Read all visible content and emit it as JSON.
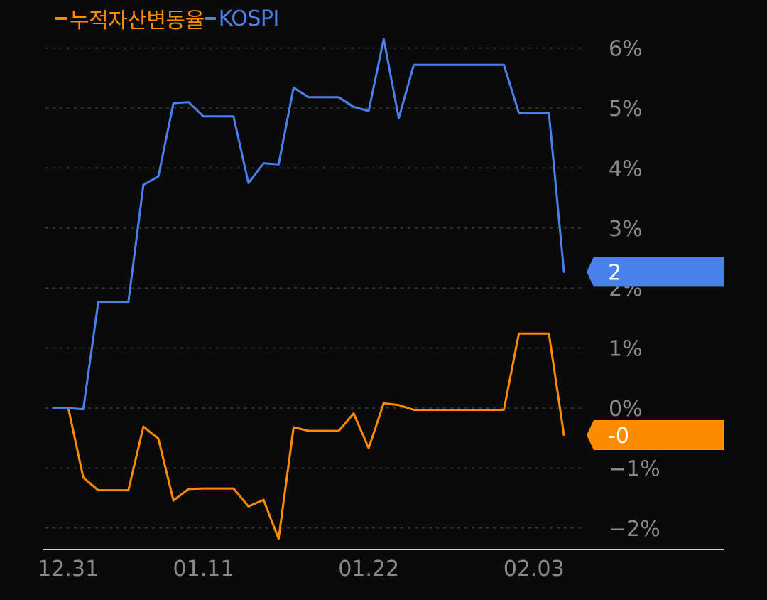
{
  "chart_data": {
    "type": "line",
    "title": "",
    "xlabel": "",
    "ylabel": "",
    "ylim": [
      -2.4,
      6.4
    ],
    "y_ticks": [
      -2,
      -1,
      0,
      1,
      2,
      3,
      4,
      5,
      6
    ],
    "y_tick_labels": [
      "−2%",
      "−1%",
      "0%",
      "1%",
      "2%",
      "3%",
      "4%",
      "5%",
      "6%"
    ],
    "x_ticks": [
      {
        "index": 1,
        "label": "12.31"
      },
      {
        "index": 10,
        "label": "01.11"
      },
      {
        "index": 21,
        "label": "01.22"
      },
      {
        "index": 32,
        "label": "02.03"
      }
    ],
    "n_points": 35,
    "grid": true,
    "legend_position": "top-left",
    "series": [
      {
        "name": "누적자산변동율",
        "color": "#ff8c00",
        "values": [
          0,
          0,
          -1.16,
          -1.37,
          -1.37,
          -1.37,
          -0.31,
          -0.51,
          -1.54,
          -1.35,
          -1.34,
          -1.34,
          -1.34,
          -1.64,
          -1.53,
          -2.18,
          -0.32,
          -0.38,
          -0.38,
          -0.38,
          -0.09,
          -0.67,
          0.08,
          0.05,
          -0.03,
          -0.03,
          -0.03,
          -0.03,
          -0.03,
          -0.03,
          -0.03,
          1.24,
          1.24,
          1.24,
          -0.45
        ],
        "last_label": "-0"
      },
      {
        "name": "KOSPI",
        "color": "#4a80ec",
        "values": [
          0,
          0,
          -0.02,
          1.77,
          1.77,
          1.77,
          3.72,
          3.86,
          5.08,
          5.1,
          4.86,
          4.86,
          4.86,
          3.75,
          4.08,
          4.06,
          5.34,
          5.18,
          5.18,
          5.18,
          5.02,
          4.95,
          6.15,
          4.83,
          5.72,
          5.72,
          5.72,
          5.72,
          5.72,
          5.72,
          5.72,
          4.92,
          4.92,
          4.92,
          2.27
        ],
        "last_label": "2"
      }
    ]
  }
}
